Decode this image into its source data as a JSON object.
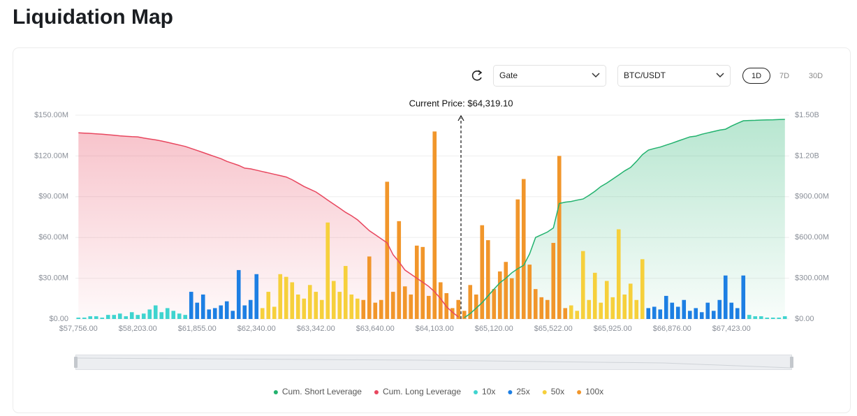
{
  "page": {
    "title": "Liquidation Map",
    "exchange": "Gate",
    "pair": "BTC/USDT",
    "timeframes": [
      "1D",
      "7D",
      "30D"
    ]
  },
  "chart_data": {
    "type": "bar",
    "annotation": "Current Price: $64,319.10",
    "categories": [
      "$57,756.00",
      null,
      null,
      null,
      null,
      null,
      null,
      null,
      null,
      null,
      "$58,203.00",
      null,
      null,
      null,
      null,
      null,
      null,
      null,
      null,
      null,
      "$61,855.00",
      null,
      null,
      null,
      null,
      null,
      null,
      null,
      null,
      null,
      "$62,340.00",
      null,
      null,
      null,
      null,
      null,
      null,
      null,
      null,
      null,
      "$63,342.00",
      null,
      null,
      null,
      null,
      null,
      null,
      null,
      null,
      null,
      "$63,640.00",
      null,
      null,
      null,
      null,
      null,
      null,
      null,
      null,
      null,
      "$64,103.00",
      null,
      null,
      null,
      null,
      null,
      null,
      null,
      null,
      null,
      "$65,120.00",
      null,
      null,
      null,
      null,
      null,
      null,
      null,
      null,
      null,
      "$65,522.00",
      null,
      null,
      null,
      null,
      null,
      null,
      null,
      null,
      null,
      "$65,925.00",
      null,
      null,
      null,
      null,
      null,
      null,
      null,
      null,
      null,
      "$66,876.00",
      null,
      null,
      null,
      null,
      null,
      null,
      null,
      null,
      null,
      "$67,423.00",
      null,
      null,
      null,
      null,
      null,
      null,
      null,
      null,
      null
    ],
    "ylim": [
      0,
      150
    ],
    "yticks": [
      {
        "value": 0,
        "label": "$0.00"
      },
      {
        "value": 30,
        "label": "$30.00M"
      },
      {
        "value": 60,
        "label": "$60.00M"
      },
      {
        "value": 90,
        "label": "$90.00M"
      },
      {
        "value": 120,
        "label": "$120.00M"
      },
      {
        "value": 150,
        "label": "$150.00M"
      }
    ],
    "y2lim": [
      0,
      1500
    ],
    "y2ticks": [
      {
        "value": 0,
        "label": "$0.00"
      },
      {
        "value": 300,
        "label": "$300.00M"
      },
      {
        "value": 600,
        "label": "$600.00M"
      },
      {
        "value": 900,
        "label": "$900.00M"
      },
      {
        "value": 1200,
        "label": "$1.20B"
      },
      {
        "value": 1500,
        "label": "$1.50B"
      }
    ],
    "grid": true,
    "series": [
      {
        "name": "Cum. Short Leverage",
        "type": "line",
        "axis": "y2",
        "color": "#22b26e",
        "values": [
          null,
          null,
          null,
          null,
          null,
          null,
          null,
          null,
          null,
          null,
          null,
          null,
          null,
          null,
          null,
          null,
          null,
          null,
          null,
          null,
          null,
          null,
          null,
          null,
          null,
          null,
          null,
          null,
          null,
          null,
          null,
          null,
          null,
          null,
          null,
          null,
          null,
          null,
          null,
          null,
          null,
          null,
          null,
          null,
          null,
          null,
          null,
          null,
          null,
          null,
          null,
          null,
          null,
          null,
          null,
          null,
          null,
          null,
          null,
          null,
          null,
          null,
          null,
          null,
          null,
          10,
          40,
          80,
          120,
          170,
          220,
          267,
          300,
          340,
          370,
          395,
          480,
          600,
          620,
          640,
          670,
          850,
          860,
          865,
          875,
          883,
          910,
          940,
          975,
          1000,
          1030,
          1060,
          1090,
          1115,
          1160,
          1210,
          1243,
          1255,
          1265,
          1280,
          1294,
          1310,
          1325,
          1340,
          1346,
          1360,
          1370,
          1380,
          1390,
          1397,
          1420,
          1440,
          1459,
          1461,
          1462,
          1464,
          1465,
          1466,
          1468,
          1469
        ]
      },
      {
        "name": "Cum. Long Leverage",
        "type": "line",
        "axis": "y2",
        "color": "#e8475f",
        "values": [
          1370,
          1368,
          1366,
          1363,
          1360,
          1356,
          1352,
          1348,
          1345,
          1342,
          1340,
          1332,
          1325,
          1318,
          1310,
          1300,
          1290,
          1280,
          1270,
          1255,
          1240,
          1225,
          1210,
          1195,
          1180,
          1160,
          1145,
          1130,
          1110,
          1105,
          1095,
          1085,
          1075,
          1065,
          1055,
          1045,
          1025,
          1000,
          975,
          955,
          935,
          905,
          875,
          845,
          815,
          785,
          760,
          730,
          690,
          650,
          620,
          590,
          560,
          473,
          420,
          360,
          330,
          300,
          270,
          240,
          200,
          150,
          90,
          50,
          15,
          null,
          null,
          null,
          null,
          null,
          null,
          null,
          null,
          null,
          null,
          null,
          null,
          null,
          null,
          null,
          null,
          null,
          null,
          null,
          null,
          null,
          null,
          null,
          null,
          null,
          null,
          null,
          null,
          null,
          null,
          null,
          null,
          null,
          null,
          null,
          null,
          null,
          null,
          null,
          null,
          null,
          null,
          null,
          null,
          null,
          null,
          null,
          null,
          null,
          null,
          null,
          null,
          null,
          null,
          null
        ]
      },
      {
        "name": "10x",
        "type": "bar",
        "color": "#3fd4cf",
        "values": [
          1,
          1,
          2,
          2,
          1,
          3,
          3,
          4,
          2,
          5,
          3,
          4,
          7,
          10,
          5,
          8,
          6,
          4,
          3,
          null,
          null,
          null,
          null,
          null,
          null,
          null,
          null,
          null,
          null,
          null,
          null,
          null,
          null,
          null,
          null,
          null,
          null,
          null,
          null,
          null,
          null,
          null,
          null,
          null,
          null,
          null,
          null,
          null,
          null,
          null,
          null,
          null,
          null,
          null,
          null,
          null,
          null,
          null,
          null,
          null,
          null,
          null,
          null,
          null,
          null,
          null,
          null,
          null,
          null,
          null,
          null,
          null,
          null,
          null,
          null,
          null,
          null,
          null,
          null,
          null,
          null,
          null,
          null,
          null,
          null,
          null,
          null,
          null,
          null,
          null,
          null,
          null,
          null,
          null,
          null,
          null,
          null,
          null,
          null,
          null,
          null,
          null,
          null,
          null,
          null,
          null,
          null,
          null,
          null,
          null,
          null,
          null,
          null,
          3,
          2,
          2,
          1,
          1,
          1,
          2
        ]
      },
      {
        "name": "25x",
        "type": "bar",
        "color": "#1d7fe3",
        "values": [
          null,
          null,
          null,
          null,
          null,
          null,
          null,
          null,
          null,
          null,
          null,
          null,
          null,
          null,
          null,
          null,
          null,
          null,
          null,
          20,
          12,
          18,
          7,
          8,
          10,
          13,
          6,
          36,
          10,
          14,
          33,
          null,
          null,
          null,
          null,
          null,
          null,
          null,
          null,
          null,
          null,
          null,
          null,
          null,
          null,
          null,
          null,
          null,
          null,
          null,
          null,
          null,
          null,
          null,
          null,
          null,
          null,
          null,
          null,
          null,
          null,
          null,
          null,
          null,
          null,
          null,
          null,
          null,
          null,
          null,
          null,
          null,
          null,
          null,
          null,
          null,
          null,
          null,
          null,
          null,
          null,
          null,
          null,
          null,
          null,
          null,
          null,
          null,
          null,
          null,
          null,
          null,
          null,
          null,
          null,
          null,
          8,
          9,
          7,
          17,
          12,
          9,
          14,
          6,
          8,
          5,
          12,
          6,
          14,
          32,
          12,
          8,
          32,
          null,
          null,
          null,
          null,
          null,
          null,
          null
        ]
      },
      {
        "name": "50x",
        "type": "bar",
        "color": "#f6d03c",
        "values": [
          null,
          null,
          null,
          null,
          null,
          null,
          null,
          null,
          null,
          null,
          null,
          null,
          null,
          null,
          null,
          null,
          null,
          null,
          null,
          null,
          null,
          null,
          null,
          null,
          null,
          null,
          null,
          null,
          null,
          null,
          null,
          8,
          20,
          9,
          33,
          31,
          27,
          18,
          15,
          25,
          20,
          14,
          71,
          28,
          20,
          39,
          18,
          15,
          null,
          null,
          null,
          null,
          null,
          null,
          null,
          null,
          null,
          null,
          null,
          null,
          null,
          null,
          null,
          null,
          null,
          null,
          null,
          null,
          null,
          null,
          null,
          null,
          null,
          null,
          null,
          null,
          null,
          null,
          null,
          null,
          null,
          null,
          null,
          10,
          6,
          50,
          14,
          34,
          12,
          28,
          16,
          66,
          18,
          26,
          14,
          44,
          null,
          null,
          null,
          null,
          null,
          null,
          null,
          null,
          null,
          null,
          null,
          null,
          null,
          null,
          null,
          null,
          null,
          null,
          null,
          null,
          null,
          null,
          null,
          null
        ]
      },
      {
        "name": "100x",
        "type": "bar",
        "color": "#f1962b",
        "values": [
          null,
          null,
          null,
          null,
          null,
          null,
          null,
          null,
          null,
          null,
          null,
          null,
          null,
          null,
          null,
          null,
          null,
          null,
          null,
          null,
          null,
          null,
          null,
          null,
          null,
          null,
          null,
          null,
          null,
          null,
          null,
          null,
          null,
          null,
          null,
          null,
          null,
          null,
          null,
          null,
          null,
          null,
          null,
          null,
          null,
          null,
          null,
          null,
          14,
          46,
          12,
          14,
          101,
          20,
          72,
          24,
          18,
          54,
          53,
          17,
          138,
          27,
          19,
          8,
          14,
          6,
          25,
          18,
          69,
          58,
          22,
          35,
          42,
          30,
          88,
          103,
          40,
          22,
          16,
          14,
          56,
          120,
          8,
          null,
          null,
          null,
          null,
          null,
          null,
          null,
          null,
          null,
          null,
          null,
          null,
          null,
          null,
          null,
          null,
          null,
          null,
          null,
          null,
          null,
          null,
          null,
          null,
          null,
          null,
          null,
          null,
          null,
          null,
          null,
          null,
          null,
          null,
          null,
          null,
          null
        ]
      }
    ]
  }
}
